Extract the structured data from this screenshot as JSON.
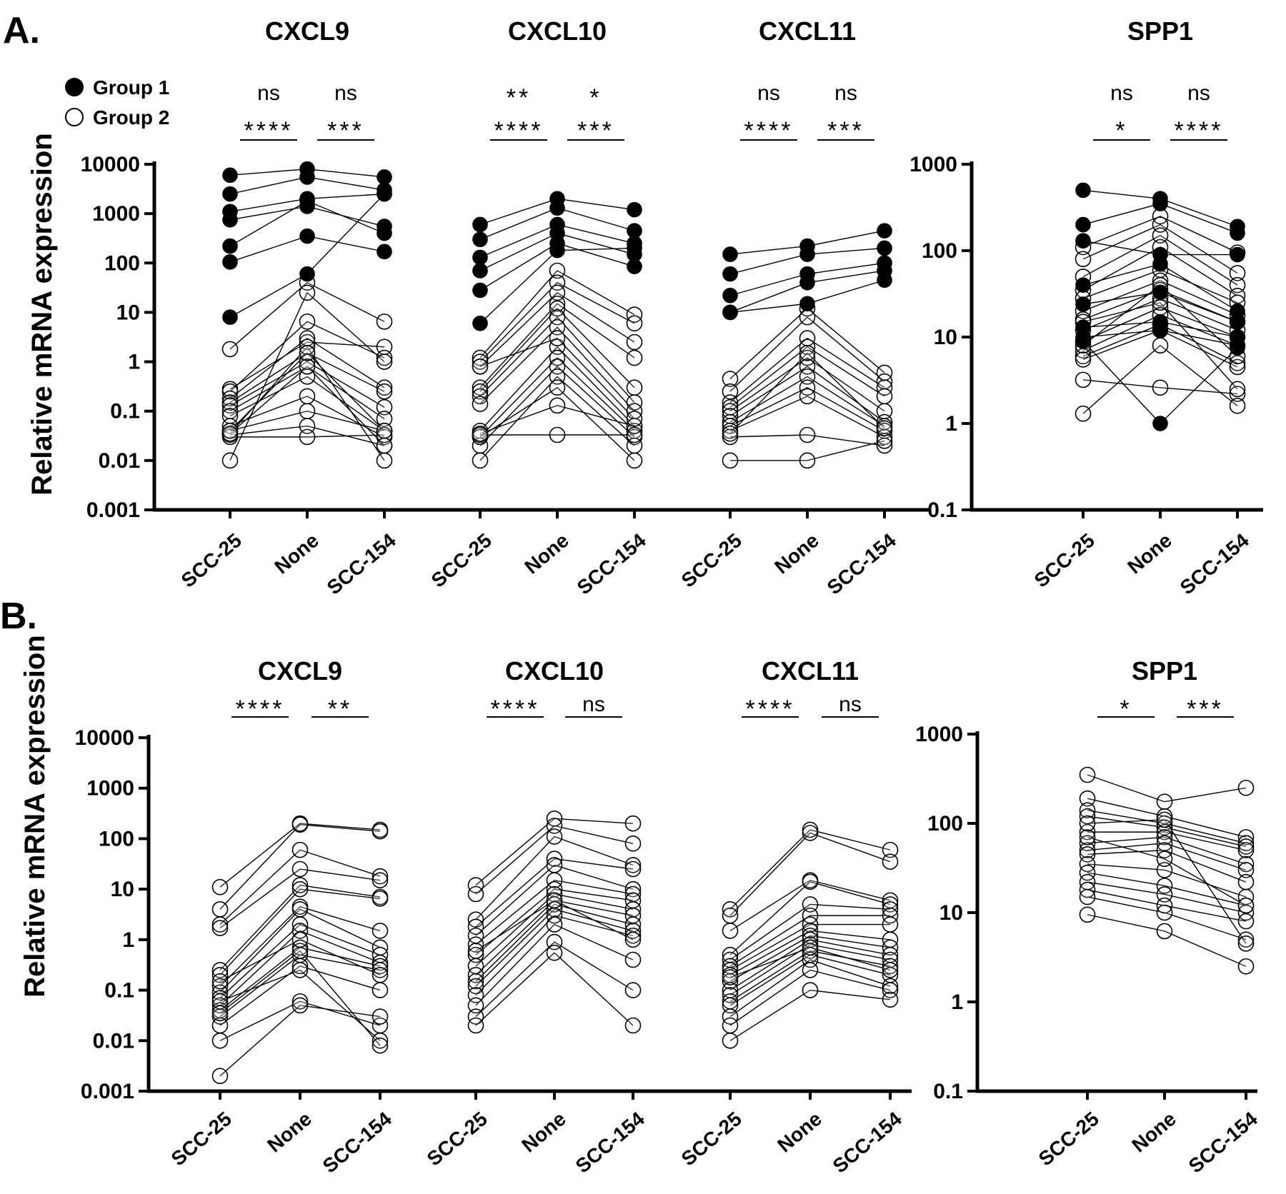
{
  "colors": {
    "ink": "#000000",
    "open_fill": "#ffffff",
    "background": "#ffffff"
  },
  "legend": {
    "items": [
      {
        "label": "Group 1",
        "marker": "filled-circle"
      },
      {
        "label": "Group 2",
        "marker": "open-circle"
      }
    ]
  },
  "panels": [
    {
      "label": "A.",
      "ylabel": "Relative  mRNA expression",
      "axes": [
        {
          "ticks": [
            "0.001",
            "0.01",
            "0.1",
            "1",
            "10",
            "100",
            "1000",
            "10000"
          ],
          "tick_values": [
            0.001,
            0.01,
            0.1,
            1,
            10,
            100,
            1000,
            10000
          ],
          "ylim": [
            0.001,
            10000
          ]
        },
        {
          "ticks": [
            "0.1",
            "1",
            "10",
            "100",
            "1000"
          ],
          "tick_values": [
            0.1,
            1,
            10,
            100,
            1000
          ],
          "ylim": [
            0.1,
            1000
          ]
        }
      ]
    },
    {
      "label": "B.",
      "ylabel": "Relative  mRNA expression",
      "axes": [
        {
          "ticks": [
            "0.001",
            "0.01",
            "0.1",
            "1",
            "10",
            "100",
            "1000",
            "10000"
          ],
          "tick_values": [
            0.001,
            0.01,
            0.1,
            1,
            10,
            100,
            1000,
            10000
          ],
          "ylim": [
            0.001,
            10000
          ]
        },
        {
          "ticks": [
            "0.1",
            "1",
            "10",
            "100",
            "1000"
          ],
          "tick_values": [
            0.1,
            1,
            10,
            100,
            1000
          ],
          "ylim": [
            0.1,
            1000
          ]
        }
      ]
    }
  ],
  "chart_data": [
    {
      "type": "scatter",
      "panel": "A.",
      "title": "CXCL9",
      "categories": [
        "SCC-25",
        "None",
        "SCC-154"
      ],
      "ylabel": "Relative  mRNA expression",
      "yscale": "log",
      "ylim": [
        0.001,
        10000
      ],
      "significance": {
        "upper": [
          "ns",
          "ns"
        ],
        "lower": [
          "****",
          "***"
        ]
      },
      "series": [
        {
          "name": "Group 1",
          "filled": true,
          "values": [
            [
              6000,
              8000,
              5500
            ],
            [
              2500,
              5500,
              3000
            ],
            [
              1100,
              2000,
              2500
            ],
            [
              750,
              1400,
              550
            ],
            [
              220,
              1800,
              400
            ],
            [
              105,
              350,
              170
            ],
            [
              8,
              60,
              2500
            ]
          ]
        },
        {
          "name": "Group 2",
          "filled": false,
          "values": [
            [
              1.8,
              40,
              6.5
            ],
            [
              0.28,
              2.5,
              2
            ],
            [
              0.25,
              6.5,
              1.2
            ],
            [
              0.18,
              3,
              0.3
            ],
            [
              0.15,
              1.5,
              0.25
            ],
            [
              0.13,
              1,
              0.12
            ],
            [
              0.1,
              0.8,
              0.07
            ],
            [
              0.08,
              0.5,
              0.04
            ],
            [
              0.05,
              0.2,
              0.03
            ],
            [
              0.04,
              0.1,
              0.04
            ],
            [
              0.033,
              0.05,
              0.02
            ],
            [
              0.03,
              0.03,
              0.033
            ],
            [
              0.01,
              25,
              1
            ],
            [
              0.035,
              2,
              0.01
            ],
            [
              0.035,
              0.8,
              0.02
            ],
            [
              0.04,
              1.5,
              0.04
            ]
          ]
        }
      ]
    },
    {
      "type": "scatter",
      "panel": "A.",
      "title": "CXCL10",
      "categories": [
        "SCC-25",
        "None",
        "SCC-154"
      ],
      "ylabel": "Relative  mRNA expression",
      "yscale": "log",
      "ylim": [
        0.001,
        10000
      ],
      "significance": {
        "upper": [
          "**",
          "*"
        ],
        "lower": [
          "****",
          "***"
        ]
      },
      "series": [
        {
          "name": "Group 1",
          "filled": true,
          "values": [
            [
              600,
              2000,
              1200
            ],
            [
              300,
              1300,
              450
            ],
            [
              130,
              600,
              250
            ],
            [
              70,
              400,
              150
            ],
            [
              28,
              250,
              85
            ],
            [
              6,
              180,
              200
            ]
          ]
        },
        {
          "name": "Group 2",
          "filled": false,
          "values": [
            [
              1.2,
              70,
              9
            ],
            [
              1,
              40,
              6
            ],
            [
              0.8,
              25,
              2.5
            ],
            [
              0.3,
              15,
              1.2
            ],
            [
              0.25,
              12,
              0.3
            ],
            [
              0.2,
              8,
              0.15
            ],
            [
              0.14,
              5,
              0.1
            ],
            [
              0.04,
              2,
              0.05
            ],
            [
              0.03,
              1.2,
              0.04
            ],
            [
              0.02,
              0.8,
              0.03
            ],
            [
              0.01,
              0.5,
              0.02
            ],
            [
              0.03,
              0.3,
              0.01
            ],
            [
              0.035,
              0.13,
              0.05
            ],
            [
              0.033,
              0.033,
              0.033
            ],
            [
              0.8,
              3,
              0.07
            ]
          ]
        }
      ]
    },
    {
      "type": "scatter",
      "panel": "A.",
      "title": "CXCL11",
      "categories": [
        "SCC-25",
        "None",
        "SCC-154"
      ],
      "ylabel": "Relative  mRNA expression",
      "yscale": "log",
      "ylim": [
        0.001,
        10000
      ],
      "significance": {
        "upper": [
          "ns",
          "ns"
        ],
        "lower": [
          "****",
          "***"
        ]
      },
      "series": [
        {
          "name": "Group 1",
          "filled": true,
          "values": [
            [
              150,
              220,
              450
            ],
            [
              60,
              150,
              200
            ],
            [
              22,
              60,
              100
            ],
            [
              10,
              40,
              70
            ],
            [
              10,
              15,
              45
            ]
          ]
        },
        {
          "name": "Group 2",
          "filled": false,
          "values": [
            [
              0.45,
              12,
              0.6
            ],
            [
              0.25,
              8,
              0.4
            ],
            [
              0.15,
              3,
              0.3
            ],
            [
              0.12,
              2,
              0.2
            ],
            [
              0.1,
              1.2,
              0.1
            ],
            [
              0.08,
              0.8,
              0.06
            ],
            [
              0.06,
              0.5,
              0.05
            ],
            [
              0.05,
              0.3,
              0.04
            ],
            [
              0.04,
              0.2,
              0.03
            ],
            [
              0.03,
              0.033,
              0.02
            ],
            [
              0.01,
              0.01,
              0.025
            ],
            [
              0.035,
              1.5,
              0.045
            ]
          ]
        }
      ]
    },
    {
      "type": "scatter",
      "panel": "A.",
      "title": "SPP1",
      "categories": [
        "SCC-25",
        "None",
        "SCC-154"
      ],
      "ylabel": "Relative  mRNA expression",
      "yscale": "log",
      "ylim": [
        0.1,
        1000
      ],
      "significance": {
        "upper": [
          "ns",
          "ns"
        ],
        "lower": [
          "*",
          "****"
        ]
      },
      "series": [
        {
          "name": "Group 1",
          "filled": true,
          "values": [
            [
              500,
              400,
              190
            ],
            [
              200,
              350,
              160
            ],
            [
              130,
              90,
              90
            ],
            [
              40,
              70,
              20
            ],
            [
              24,
              33,
              15
            ],
            [
              13,
              15,
              10
            ],
            [
              10,
              12,
              8
            ],
            [
              9,
              1,
              7.5
            ]
          ]
        },
        {
          "name": "Group 2",
          "filled": false,
          "values": [
            [
              110,
              250,
              95
            ],
            [
              80,
              200,
              55
            ],
            [
              50,
              150,
              40
            ],
            [
              35,
              110,
              30
            ],
            [
              28,
              60,
              25
            ],
            [
              20,
              45,
              18
            ],
            [
              16,
              35,
              15
            ],
            [
              12,
              28,
              12
            ],
            [
              9,
              22,
              10
            ],
            [
              7,
              18,
              8
            ],
            [
              6,
              14,
              5
            ],
            [
              5.5,
              12,
              4.5
            ],
            [
              3.2,
              2.6,
              2.2
            ],
            [
              1.3,
              8,
              1.6
            ],
            [
              15,
              25,
              2.5
            ],
            [
              8,
              40,
              6
            ]
          ]
        }
      ]
    },
    {
      "type": "scatter",
      "panel": "B.",
      "title": "CXCL9",
      "categories": [
        "SCC-25",
        "None",
        "SCC-154"
      ],
      "ylabel": "Relative  mRNA expression",
      "yscale": "log",
      "ylim": [
        0.001,
        10000
      ],
      "significance": {
        "lower": [
          "****",
          "**"
        ]
      },
      "series": [
        {
          "name": "Group 2",
          "filled": false,
          "values": [
            [
              11,
              200,
              150
            ],
            [
              4,
              190,
              140
            ],
            [
              2,
              60,
              18
            ],
            [
              1.7,
              25,
              15
            ],
            [
              0.25,
              12,
              7
            ],
            [
              0.2,
              10,
              6.5
            ],
            [
              0.12,
              4.5,
              1.5
            ],
            [
              0.09,
              4,
              0.7
            ],
            [
              0.07,
              2,
              0.5
            ],
            [
              0.05,
              1.5,
              0.35
            ],
            [
              0.04,
              0.7,
              0.3
            ],
            [
              0.03,
              0.5,
              0.25
            ],
            [
              0.02,
              0.3,
              0.1
            ],
            [
              0.01,
              0.06,
              0.02
            ],
            [
              0.002,
              0.05,
              0.03
            ],
            [
              0.06,
              0.25,
              0.01
            ],
            [
              0.035,
              0.6,
              0.008
            ],
            [
              0.15,
              1,
              0.2
            ]
          ]
        }
      ]
    },
    {
      "type": "scatter",
      "panel": "B.",
      "title": "CXCL10",
      "categories": [
        "SCC-25",
        "None",
        "SCC-154"
      ],
      "ylabel": "Relative  mRNA expression",
      "yscale": "log",
      "ylim": [
        0.001,
        10000
      ],
      "significance": {
        "lower": [
          "****",
          "ns"
        ]
      },
      "series": [
        {
          "name": "Group 2",
          "filled": false,
          "values": [
            [
              12,
              250,
              200
            ],
            [
              8,
              180,
              80
            ],
            [
              2.5,
              110,
              30
            ],
            [
              1.8,
              40,
              25
            ],
            [
              1.2,
              30,
              10
            ],
            [
              0.8,
              15,
              8
            ],
            [
              0.5,
              10,
              6
            ],
            [
              0.3,
              8,
              4
            ],
            [
              0.2,
              6,
              3
            ],
            [
              0.15,
              5,
              2
            ],
            [
              0.12,
              4,
              1.5
            ],
            [
              0.08,
              3,
              1.2
            ],
            [
              0.05,
              2,
              0.4
            ],
            [
              0.03,
              0.9,
              0.1
            ],
            [
              0.02,
              0.55,
              0.02
            ],
            [
              0.6,
              6,
              1
            ]
          ]
        }
      ]
    },
    {
      "type": "scatter",
      "panel": "B.",
      "title": "CXCL11",
      "categories": [
        "SCC-25",
        "None",
        "SCC-154"
      ],
      "ylabel": "Relative  mRNA expression",
      "yscale": "log",
      "ylim": [
        0.001,
        10000
      ],
      "significance": {
        "lower": [
          "****",
          "ns"
        ]
      },
      "series": [
        {
          "name": "Group 2",
          "filled": false,
          "values": [
            [
              4,
              150,
              60
            ],
            [
              3,
              130,
              35
            ],
            [
              1.5,
              15,
              6
            ],
            [
              0.5,
              14,
              5
            ],
            [
              0.4,
              5,
              4
            ],
            [
              0.3,
              3,
              3
            ],
            [
              0.25,
              2,
              2
            ],
            [
              0.2,
              1.5,
              1
            ],
            [
              0.15,
              1.2,
              0.7
            ],
            [
              0.1,
              1,
              0.5
            ],
            [
              0.08,
              0.8,
              0.4
            ],
            [
              0.06,
              0.6,
              0.3
            ],
            [
              0.05,
              0.5,
              0.2
            ],
            [
              0.03,
              0.4,
              0.12
            ],
            [
              0.02,
              0.25,
              0.1
            ],
            [
              0.01,
              0.1,
              0.065
            ],
            [
              0.18,
              0.7,
              0.25
            ]
          ]
        }
      ]
    },
    {
      "type": "scatter",
      "panel": "B.",
      "title": "SPP1",
      "categories": [
        "SCC-25",
        "None",
        "SCC-154"
      ],
      "ylabel": "Relative  mRNA expression",
      "yscale": "log",
      "ylim": [
        0.1,
        1000
      ],
      "significance": {
        "lower": [
          "*",
          "***"
        ]
      },
      "series": [
        {
          "name": "Group 2",
          "filled": false,
          "values": [
            [
              350,
              175,
              250
            ],
            [
              190,
              120,
              70
            ],
            [
              140,
              100,
              60
            ],
            [
              120,
              90,
              55
            ],
            [
              80,
              80,
              50
            ],
            [
              60,
              70,
              35
            ],
            [
              50,
              60,
              30
            ],
            [
              45,
              50,
              22
            ],
            [
              35,
              30,
              15
            ],
            [
              28,
              20,
              12
            ],
            [
              22,
              16,
              10
            ],
            [
              18,
              12,
              8
            ],
            [
              15,
              10,
              5
            ],
            [
              9.5,
              6.2,
              2.5
            ],
            [
              70,
              40,
              12
            ],
            [
              100,
              110,
              4.5
            ]
          ]
        }
      ]
    }
  ]
}
